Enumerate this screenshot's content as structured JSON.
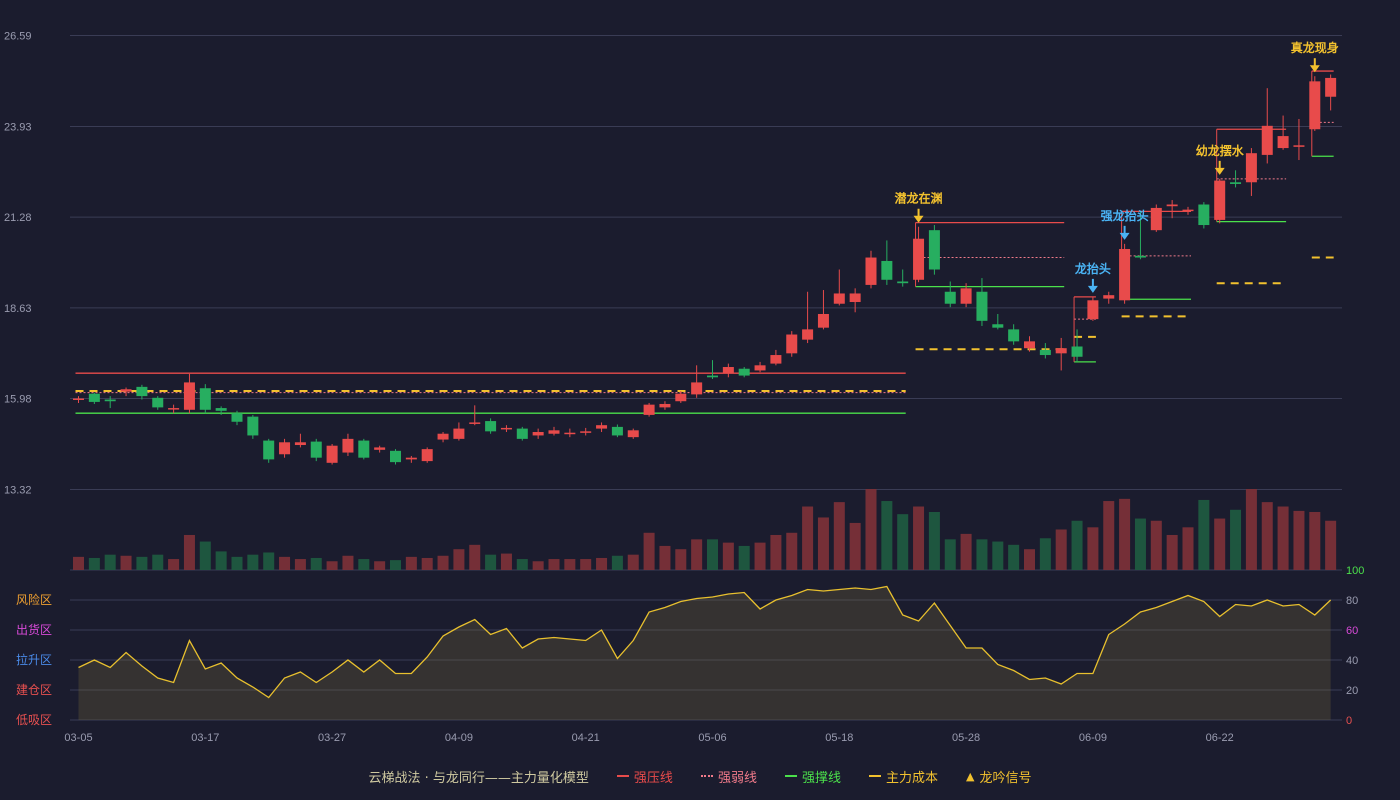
{
  "legend": {
    "title": "云梯战法 · 与龙同行——主力量化模型",
    "items": [
      {
        "label": "强压线",
        "color": "#e84b4b",
        "style": "solid"
      },
      {
        "label": "强弱线",
        "color": "#f07a8a",
        "style": "dotted"
      },
      {
        "label": "强撑线",
        "color": "#4be04b",
        "style": "solid"
      },
      {
        "label": "主力成本",
        "color": "#f2c12e",
        "style": "dashed"
      },
      {
        "label": "龙吟信号",
        "color": "#f2c12e",
        "style": "triangle"
      }
    ]
  },
  "colors": {
    "background": "#1b1c2e",
    "up": "#e84b4b",
    "down": "#27ae60",
    "signal_gold": "#f2c12e",
    "signal_blue": "#4ab3f4",
    "indicator_line": "#e8c02e"
  },
  "chart_data": {
    "type": "candlestick",
    "y_ticks": [
      "26.59",
      "23.93",
      "21.28",
      "18.63",
      "15.98",
      "13.32"
    ],
    "ylim": [
      13.32,
      26.59
    ],
    "x_tick_labels": [
      "03-05",
      "03-17",
      "03-27",
      "04-09",
      "04-21",
      "05-06",
      "05-18",
      "05-28",
      "06-09",
      "06-22"
    ],
    "x_tick_index": [
      0,
      8,
      16,
      24,
      32,
      40,
      48,
      56,
      64,
      72
    ],
    "candles": [
      [
        15.98,
        15.98,
        15.85,
        16.05
      ],
      [
        16.12,
        15.88,
        15.82,
        16.15
      ],
      [
        15.95,
        15.9,
        15.7,
        16.05
      ],
      [
        16.18,
        16.25,
        16.05,
        16.3
      ],
      [
        16.32,
        16.05,
        15.95,
        16.38
      ],
      [
        16.0,
        15.72,
        15.65,
        16.05
      ],
      [
        15.68,
        15.7,
        15.55,
        15.8
      ],
      [
        15.65,
        16.45,
        15.55,
        16.7
      ],
      [
        16.28,
        15.65,
        15.55,
        16.4
      ],
      [
        15.7,
        15.62,
        15.5,
        15.75
      ],
      [
        15.55,
        15.3,
        15.2,
        15.62
      ],
      [
        15.45,
        14.9,
        14.8,
        15.5
      ],
      [
        14.75,
        14.2,
        14.1,
        14.8
      ],
      [
        14.35,
        14.7,
        14.25,
        14.8
      ],
      [
        14.62,
        14.7,
        14.55,
        14.95
      ],
      [
        14.72,
        14.25,
        14.15,
        14.8
      ],
      [
        14.1,
        14.6,
        14.05,
        14.65
      ],
      [
        14.4,
        14.8,
        14.3,
        14.95
      ],
      [
        14.75,
        14.25,
        14.2,
        14.8
      ],
      [
        14.48,
        14.55,
        14.4,
        14.6
      ],
      [
        14.45,
        14.12,
        14.05,
        14.5
      ],
      [
        14.2,
        14.25,
        14.1,
        14.3
      ],
      [
        14.15,
        14.5,
        14.1,
        14.55
      ],
      [
        14.78,
        14.95,
        14.7,
        15.0
      ],
      [
        14.8,
        15.1,
        14.75,
        15.28
      ],
      [
        15.25,
        15.28,
        15.2,
        15.78
      ],
      [
        15.32,
        15.02,
        14.95,
        15.4
      ],
      [
        15.1,
        15.12,
        15.0,
        15.2
      ],
      [
        15.1,
        14.8,
        14.75,
        15.15
      ],
      [
        14.9,
        15.0,
        14.8,
        15.1
      ],
      [
        14.95,
        15.05,
        14.9,
        15.15
      ],
      [
        14.95,
        14.98,
        14.85,
        15.1
      ],
      [
        15.0,
        15.02,
        14.9,
        15.12
      ],
      [
        15.1,
        15.2,
        15.0,
        15.28
      ],
      [
        15.15,
        14.9,
        14.85,
        15.22
      ],
      [
        14.85,
        15.05,
        14.8,
        15.1
      ],
      [
        15.5,
        15.8,
        15.45,
        15.85
      ],
      [
        15.72,
        15.82,
        15.65,
        15.9
      ],
      [
        15.9,
        16.12,
        15.85,
        16.2
      ],
      [
        16.1,
        16.45,
        16.0,
        16.95
      ],
      [
        16.65,
        16.6,
        16.55,
        17.1
      ],
      [
        16.72,
        16.9,
        16.6,
        17.0
      ],
      [
        16.85,
        16.65,
        16.6,
        16.9
      ],
      [
        16.8,
        16.95,
        16.75,
        17.05
      ],
      [
        17.0,
        17.25,
        16.95,
        17.4
      ],
      [
        17.3,
        17.85,
        17.2,
        17.95
      ],
      [
        17.7,
        18.0,
        17.6,
        19.1
      ],
      [
        18.05,
        18.45,
        18.0,
        19.15
      ],
      [
        18.75,
        19.05,
        18.7,
        19.75
      ],
      [
        18.8,
        19.05,
        18.5,
        19.2
      ],
      [
        19.3,
        20.1,
        19.2,
        20.3
      ],
      [
        20.0,
        19.45,
        19.3,
        20.6
      ],
      [
        19.4,
        19.35,
        19.25,
        19.75
      ],
      [
        19.45,
        20.65,
        19.38,
        21.0
      ],
      [
        20.9,
        19.75,
        19.6,
        21.05
      ],
      [
        19.1,
        18.75,
        18.65,
        19.4
      ],
      [
        18.75,
        19.2,
        18.65,
        19.35
      ],
      [
        19.1,
        18.25,
        18.1,
        19.5
      ],
      [
        18.15,
        18.05,
        18.0,
        18.45
      ],
      [
        18.0,
        17.65,
        17.55,
        18.15
      ],
      [
        17.45,
        17.65,
        17.35,
        17.8
      ],
      [
        17.4,
        17.25,
        17.15,
        17.6
      ],
      [
        17.3,
        17.45,
        16.8,
        17.75
      ],
      [
        17.5,
        17.2,
        17.05,
        18.0
      ],
      [
        18.3,
        18.85,
        18.25,
        18.95
      ],
      [
        18.9,
        19.0,
        18.75,
        19.1
      ],
      [
        18.85,
        20.35,
        18.75,
        20.5
      ],
      [
        20.15,
        20.1,
        20.05,
        21.45
      ],
      [
        20.9,
        21.55,
        20.85,
        21.65
      ],
      [
        21.6,
        21.65,
        21.25,
        21.78
      ],
      [
        21.48,
        21.5,
        21.35,
        21.58
      ],
      [
        21.65,
        21.05,
        20.95,
        21.72
      ],
      [
        21.2,
        22.35,
        21.1,
        22.4
      ],
      [
        22.3,
        22.25,
        22.15,
        22.65
      ],
      [
        22.3,
        23.15,
        21.9,
        23.3
      ],
      [
        23.1,
        23.95,
        22.85,
        25.05
      ],
      [
        23.3,
        23.65,
        23.25,
        24.25
      ],
      [
        23.35,
        23.38,
        22.95,
        24.15
      ],
      [
        23.85,
        25.25,
        23.8,
        25.4
      ],
      [
        24.8,
        25.35,
        24.4,
        25.45
      ]
    ],
    "volume": [
      12,
      11,
      14,
      13,
      12,
      14,
      10,
      32,
      26,
      17,
      12,
      14,
      16,
      12,
      10,
      11,
      8,
      13,
      10,
      8,
      9,
      12,
      11,
      13,
      19,
      23,
      14,
      15,
      10,
      8,
      10,
      10,
      10,
      11,
      13,
      14,
      34,
      22,
      19,
      28,
      28,
      25,
      22,
      25,
      32,
      34,
      58,
      48,
      62,
      43,
      74,
      63,
      51,
      58,
      53,
      28,
      33,
      28,
      26,
      23,
      19,
      29,
      37,
      45,
      39,
      63,
      65,
      47,
      45,
      32,
      39,
      64,
      47,
      55,
      74,
      62,
      58,
      54,
      53,
      45
    ],
    "risk_index": [
      35,
      40,
      35,
      45,
      36,
      28,
      25,
      53,
      34,
      38,
      28,
      22,
      15,
      28,
      32,
      25,
      32,
      40,
      32,
      40,
      31,
      31,
      42,
      56,
      62,
      67,
      57,
      61,
      48,
      54,
      55,
      54,
      53,
      60,
      41,
      53,
      72,
      75,
      79,
      81,
      82,
      84,
      85,
      74,
      80,
      83,
      87,
      86,
      87,
      88,
      87,
      89,
      70,
      66,
      78,
      63,
      48,
      48,
      37,
      33,
      27,
      28,
      24,
      31,
      31,
      57,
      64,
      72,
      75,
      79,
      83,
      79,
      69,
      77,
      76,
      80,
      76,
      77,
      70,
      80
    ],
    "indicator_axis_ticks": [
      "100",
      "80",
      "60",
      "40",
      "20",
      "0"
    ],
    "zones": [
      {
        "label": "风险区",
        "color": "#f0a030"
      },
      {
        "label": "出货区",
        "color": "#d84ad8"
      },
      {
        "label": "拉升区",
        "color": "#4a8ae8"
      },
      {
        "label": "建仓区",
        "color": "#e85050"
      },
      {
        "label": "低吸区",
        "color": "#e85050"
      }
    ],
    "levels": [
      {
        "start": 0,
        "end": 52,
        "pressure": 16.72,
        "weak": 16.15,
        "support": 15.55,
        "cost": 16.2
      },
      {
        "start": 53,
        "end": 62,
        "pressure": 21.12,
        "weak": 20.1,
        "support": 19.25,
        "cost": 17.42
      },
      {
        "start": 63,
        "end": 64,
        "pressure": 18.95,
        "weak": 18.3,
        "support": 17.05,
        "cost": 17.78
      },
      {
        "start": 66,
        "end": 70,
        "pressure": 21.45,
        "weak": 20.15,
        "support": 18.88,
        "cost": 18.38
      },
      {
        "start": 72,
        "end": 76,
        "pressure": 23.85,
        "weak": 22.4,
        "support": 21.15,
        "cost": 19.35
      },
      {
        "start": 78,
        "end": 79,
        "pressure": 25.55,
        "weak": 24.05,
        "support": 23.06,
        "cost": 20.1
      }
    ],
    "signals": [
      {
        "index": 53,
        "label": "潜龙在渊",
        "color": "#f2c12e"
      },
      {
        "index": 64,
        "label": "龙抬头",
        "color": "#4ab3f4"
      },
      {
        "index": 66,
        "label": "强龙抬头",
        "color": "#4ab3f4"
      },
      {
        "index": 72,
        "label": "幼龙摆水",
        "color": "#f2c12e"
      },
      {
        "index": 78,
        "label": "真龙现身",
        "color": "#f2c12e"
      }
    ]
  }
}
